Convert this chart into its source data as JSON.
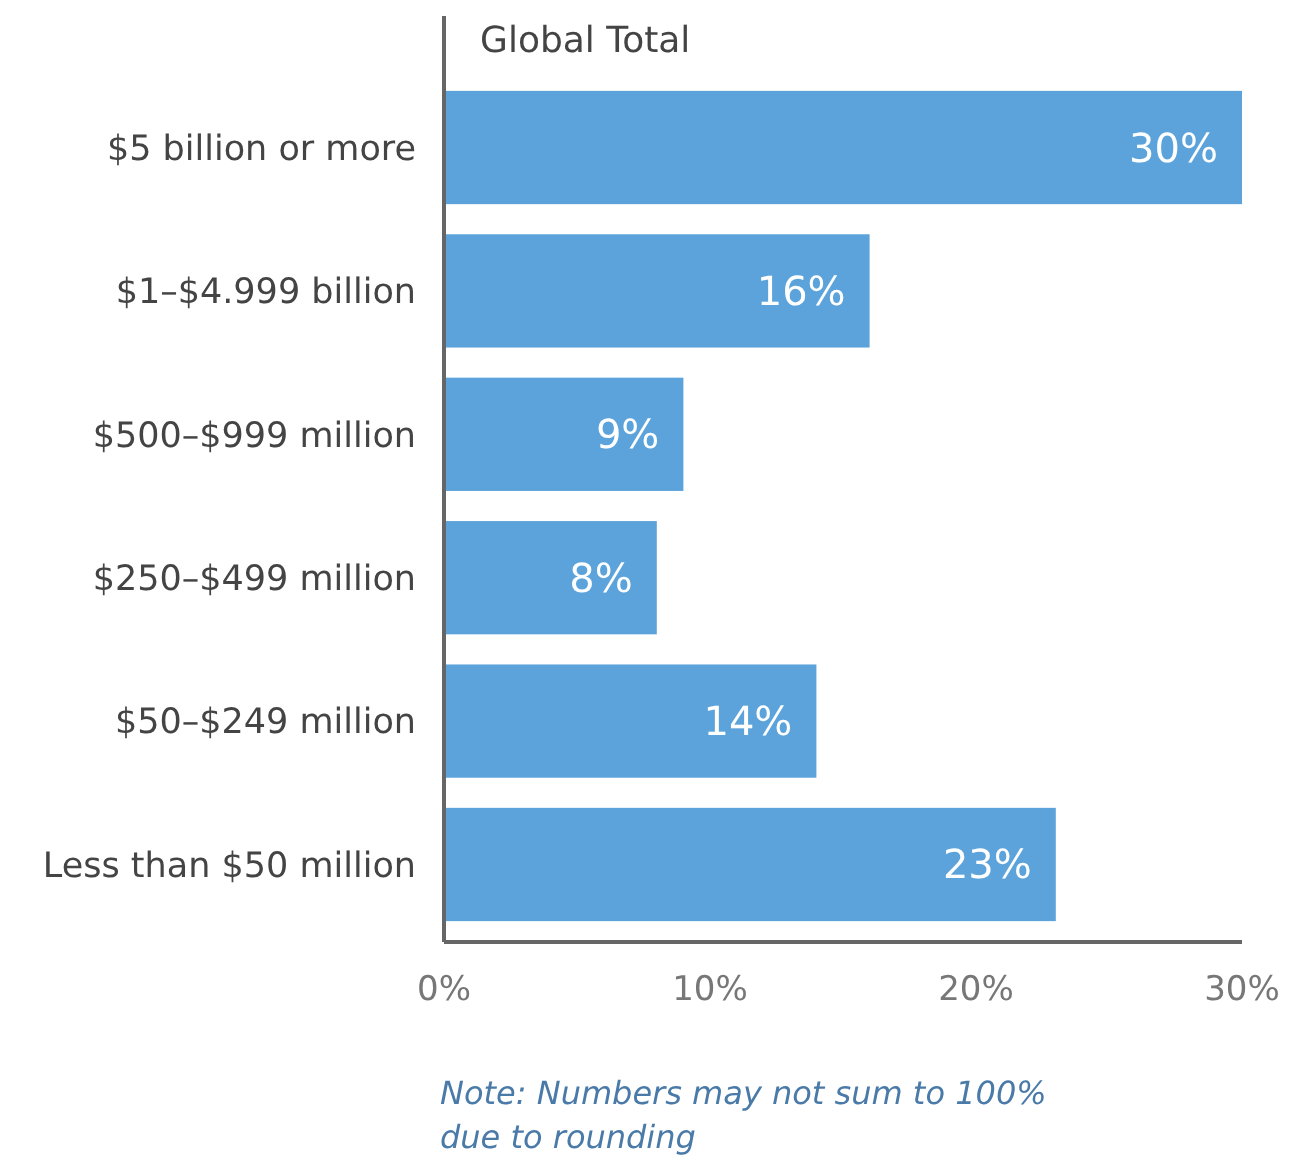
{
  "chart_data": {
    "type": "bar",
    "orientation": "horizontal",
    "title": "Global Total",
    "categories": [
      "$5 billion or more",
      "$1–$4.999 billion",
      "$500–$999 million",
      "$250–$499 million",
      "$50–$249 million",
      "Less than $50 million"
    ],
    "values": [
      30,
      16,
      9,
      8,
      14,
      23
    ],
    "value_labels": [
      "30%",
      "16%",
      "9%",
      "8%",
      "14%",
      "23%"
    ],
    "color": "#5ba3da",
    "xlim": [
      0,
      30
    ],
    "xticks": [
      {
        "value": 0,
        "label": "0%"
      },
      {
        "value": 10,
        "label": "10%"
      },
      {
        "value": 20,
        "label": "20%"
      },
      {
        "value": 30,
        "label": "30%"
      }
    ],
    "grid": false,
    "annotations": [
      "Note: Numbers may not sum to 100% due to rounding"
    ]
  }
}
